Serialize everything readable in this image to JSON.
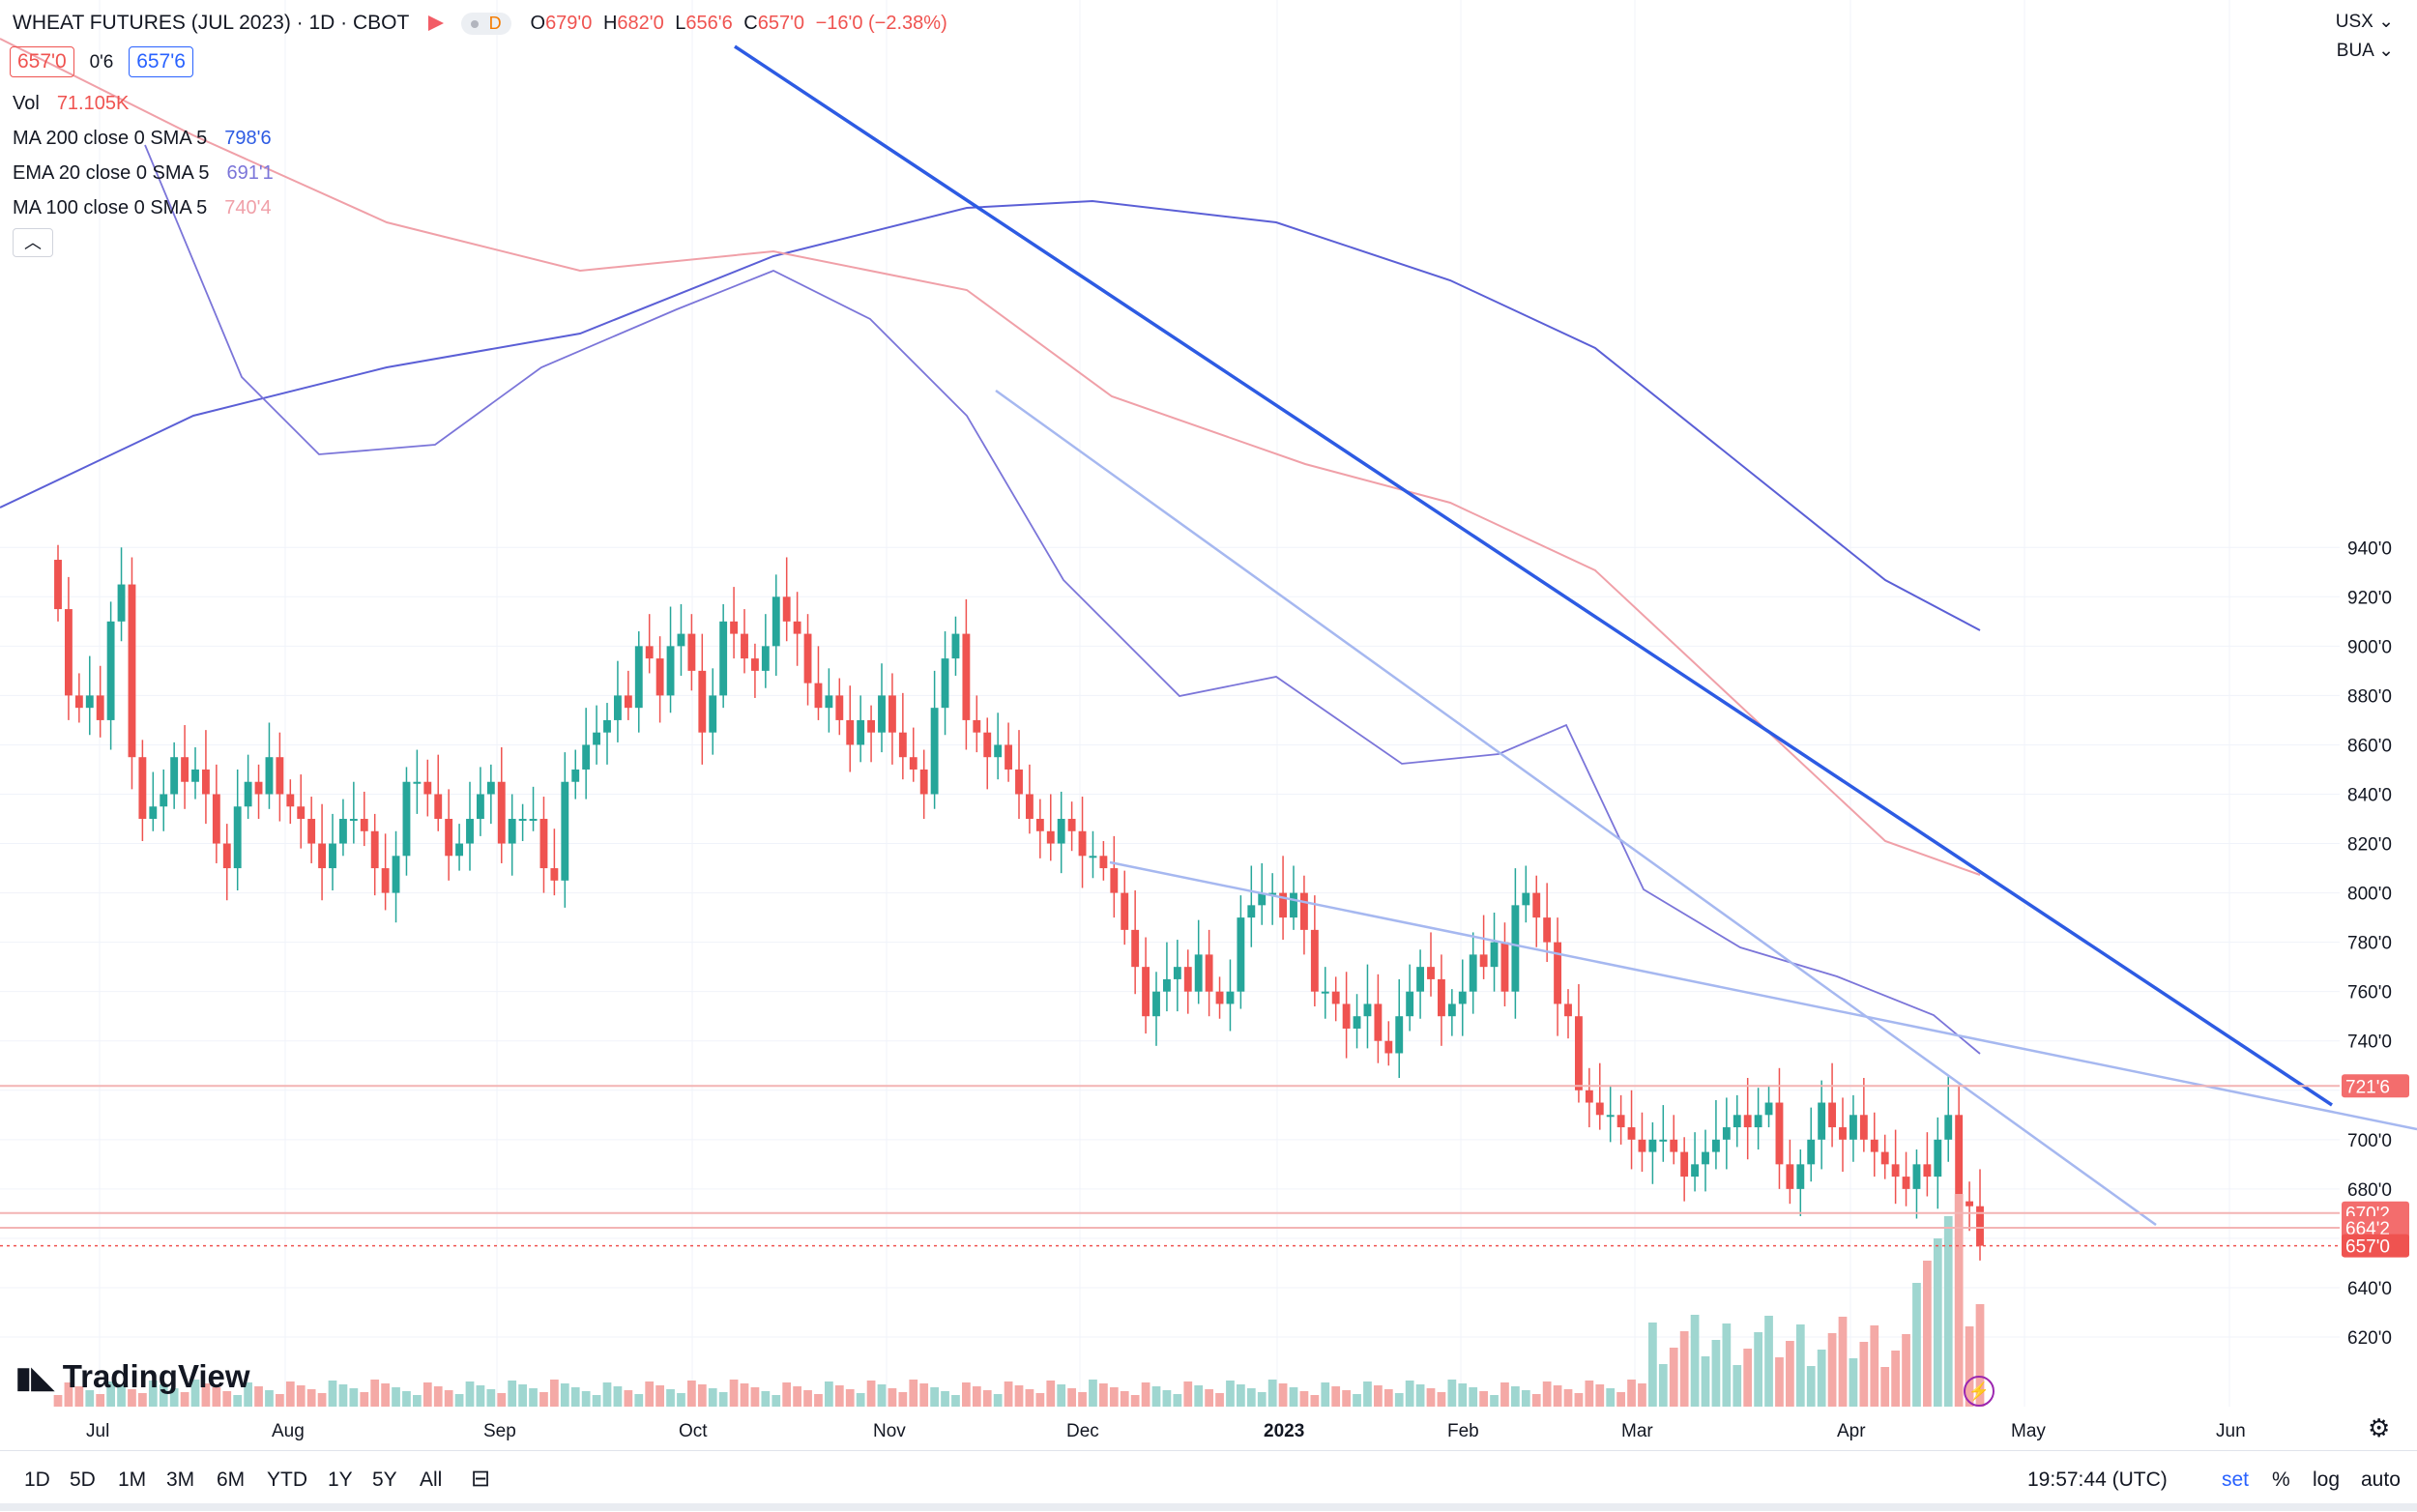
{
  "header": {
    "symbol": "WHEAT FUTURES (JUL 2023) · 1D · CBOT",
    "flag_badge": "D",
    "ohlc": {
      "o_label": "O",
      "o": "679'0",
      "h_label": "H",
      "h": "682'0",
      "l_label": "L",
      "l": "656'6",
      "c_label": "C",
      "c": "657'0",
      "change": "−16'0 (−2.38%)"
    },
    "sell_price": "657'0",
    "spread": "0'6",
    "buy_price": "657'6",
    "currency": "USX",
    "unit": "BUA"
  },
  "indicators": [
    {
      "name": "Vol",
      "params": "",
      "value": "71.105K"
    },
    {
      "name": "MA",
      "params": "200 close 0 SMA 5",
      "value": "798'6"
    },
    {
      "name": "EMA",
      "params": "20 close 0 SMA 5",
      "value": "691'1"
    },
    {
      "name": "MA",
      "params": "100 close 0 SMA 5",
      "value": "740'4"
    }
  ],
  "colors": {
    "up": "#26a69a",
    "down": "#ef5350",
    "up_vol": "#9fd6d0",
    "down_vol": "#f4a9a6",
    "ma200": "#5b5fd6",
    "ema20": "#7b75d9",
    "ma100": "#f0a0a8",
    "trend_dark": "#2d5be3",
    "trend_light": "#a6b8f0",
    "level": "#f3b4b4"
  },
  "bottom_bar": {
    "ranges": [
      "1D",
      "5D",
      "1M",
      "3M",
      "6M",
      "YTD",
      "1Y",
      "5Y",
      "All"
    ],
    "time": "19:57:44 (UTC)",
    "set": "set",
    "percent": "%",
    "log": "log",
    "auto": "auto"
  },
  "logo": "TradingView",
  "chart_data": {
    "type": "candlestick",
    "title": "WHEAT FUTURES (JUL 2023) · 1D · CBOT",
    "y_ticks": [
      "620'0",
      "640'0",
      "660'0",
      "680'0",
      "700'0",
      "720'0",
      "740'0",
      "760'0",
      "780'0",
      "800'0",
      "820'0",
      "840'0",
      "860'0",
      "880'0",
      "900'0",
      "920'0",
      "940'0"
    ],
    "x_ticks": [
      "Jul",
      "Aug",
      "Sep",
      "Oct",
      "Nov",
      "Dec",
      "2023",
      "Feb",
      "Mar",
      "Apr",
      "May",
      "Jun"
    ],
    "price_labels": [
      {
        "text": "721'6",
        "value": 721.75
      },
      {
        "text": "670'2",
        "value": 670.25
      },
      {
        "text": "664'2",
        "value": 664.25
      },
      {
        "text": "657'0",
        "value": 657
      }
    ],
    "closes": [
      915,
      880,
      875,
      880,
      870,
      910,
      925,
      855,
      830,
      835,
      840,
      855,
      845,
      850,
      840,
      820,
      810,
      835,
      845,
      840,
      855,
      840,
      835,
      830,
      820,
      810,
      820,
      830,
      830,
      825,
      810,
      800,
      815,
      845,
      845,
      840,
      830,
      815,
      820,
      830,
      840,
      845,
      820,
      830,
      830,
      830,
      810,
      805,
      845,
      850,
      860,
      865,
      870,
      880,
      875,
      900,
      895,
      880,
      900,
      905,
      890,
      865,
      880,
      910,
      905,
      895,
      890,
      900,
      920,
      910,
      905,
      885,
      875,
      880,
      870,
      860,
      870,
      865,
      880,
      865,
      855,
      850,
      840,
      875,
      895,
      905,
      870,
      865,
      855,
      860,
      850,
      840,
      830,
      825,
      820,
      830,
      825,
      815,
      815,
      810,
      800,
      785,
      770,
      750,
      760,
      765,
      770,
      760,
      775,
      760,
      755,
      760,
      790,
      795,
      800,
      800,
      790,
      800,
      785,
      760,
      760,
      755,
      745,
      750,
      755,
      740,
      735,
      750,
      760,
      770,
      765,
      750,
      755,
      760,
      775,
      770,
      780,
      760,
      795,
      800,
      790,
      780,
      755,
      750,
      720,
      715,
      710,
      710,
      705,
      700,
      695,
      700,
      700,
      695,
      685,
      690,
      695,
      700,
      705,
      710,
      705,
      710,
      715,
      690,
      680,
      690,
      700,
      715,
      705,
      700,
      710,
      700,
      695,
      690,
      685,
      680,
      690,
      685,
      700,
      710,
      675,
      673,
      657
    ]
  }
}
